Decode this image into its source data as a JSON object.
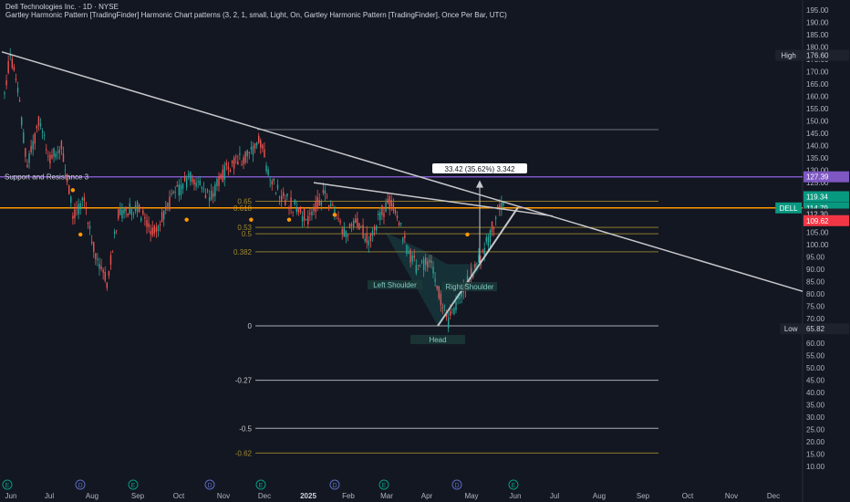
{
  "header": {
    "title": "Dell Technologies Inc. · 1D · NYSE",
    "indicator": "Gartley Harmonic Pattern [TradingFinder] Harmonic Chart patterns (3, 2, 1, small, Light, On, Gartley Harmonic Pattern [TradingFinder], Once Per Bar, UTC)"
  },
  "colors": {
    "background": "#131722",
    "up": "#26a69a",
    "down": "#ef5350",
    "trendline": "#c8c8cc",
    "support_resistance": "#7e57c2",
    "orange_level": "#ff9800",
    "fib_level": "#a08a2e",
    "axis_text": "#b2b5be"
  },
  "chart_data": {
    "type": "candlestick",
    "symbol": "DELL",
    "x_ticks": [
      "Jun",
      "Jul",
      "Aug",
      "Sep",
      "Oct",
      "Nov",
      "Dec",
      "2025",
      "Feb",
      "Mar",
      "Apr",
      "May",
      "Jun",
      "Jul",
      "Aug",
      "Sep",
      "Oct",
      "Nov",
      "Dec"
    ],
    "y_ticks": [
      195,
      190,
      185,
      180,
      175,
      170,
      165,
      160,
      155,
      150,
      145,
      140,
      135,
      130,
      125,
      120,
      115,
      110,
      105,
      100,
      95,
      90,
      85,
      80,
      75,
      70,
      65,
      60,
      55,
      50,
      45,
      40,
      35,
      30,
      25,
      20,
      15,
      10
    ],
    "ylim": [
      7.5,
      199
    ],
    "price_tags": [
      {
        "text": "High",
        "value": "176.60",
        "price": 176.6,
        "style": "dark"
      },
      {
        "text": "",
        "value": "127.39",
        "price": 127.39,
        "style": "purple"
      },
      {
        "text": "",
        "value": "119.34",
        "price": 119.34,
        "style": "green"
      },
      {
        "text": "DELL",
        "value": "114.79",
        "sub": "02:43:14",
        "price": 114.79,
        "style": "green"
      },
      {
        "text": "",
        "value": "112.30",
        "price": 112.3,
        "style": "dark"
      },
      {
        "text": "",
        "value": "109.62",
        "price": 109.62,
        "style": "red"
      },
      {
        "text": "Low",
        "value": "65.82",
        "price": 65.82,
        "style": "dark"
      }
    ],
    "fib_levels": [
      {
        "label": "0.65",
        "price": 117.5
      },
      {
        "label": "0.618",
        "price": 114.7
      },
      {
        "label": "0.53",
        "price": 106.9
      },
      {
        "label": "0.5",
        "price": 104.3
      },
      {
        "label": "0.382",
        "price": 97.0
      },
      {
        "label": "0",
        "price": 67.0
      },
      {
        "label": "-0.27",
        "price": 45.0
      },
      {
        "label": "-0.5",
        "price": 25.5
      },
      {
        "label": "-0.62",
        "price": 15.5
      }
    ],
    "support_resistance_label": "Support and Resistance 3",
    "measure_label": "33.42 (35.62%) 3,342",
    "pattern_labels": [
      "Left Shoulder",
      "Right Shoulder",
      "Head"
    ],
    "event_markers": [
      "E",
      "D",
      "E",
      "D",
      "E",
      "D",
      "E",
      "D",
      "E"
    ],
    "candles_summary": "~255 daily candles from late May 2024 to early June 2025; peak near 176.60 (late May 2024), low near 65.82 (early Apr 2025), last 114.79"
  }
}
